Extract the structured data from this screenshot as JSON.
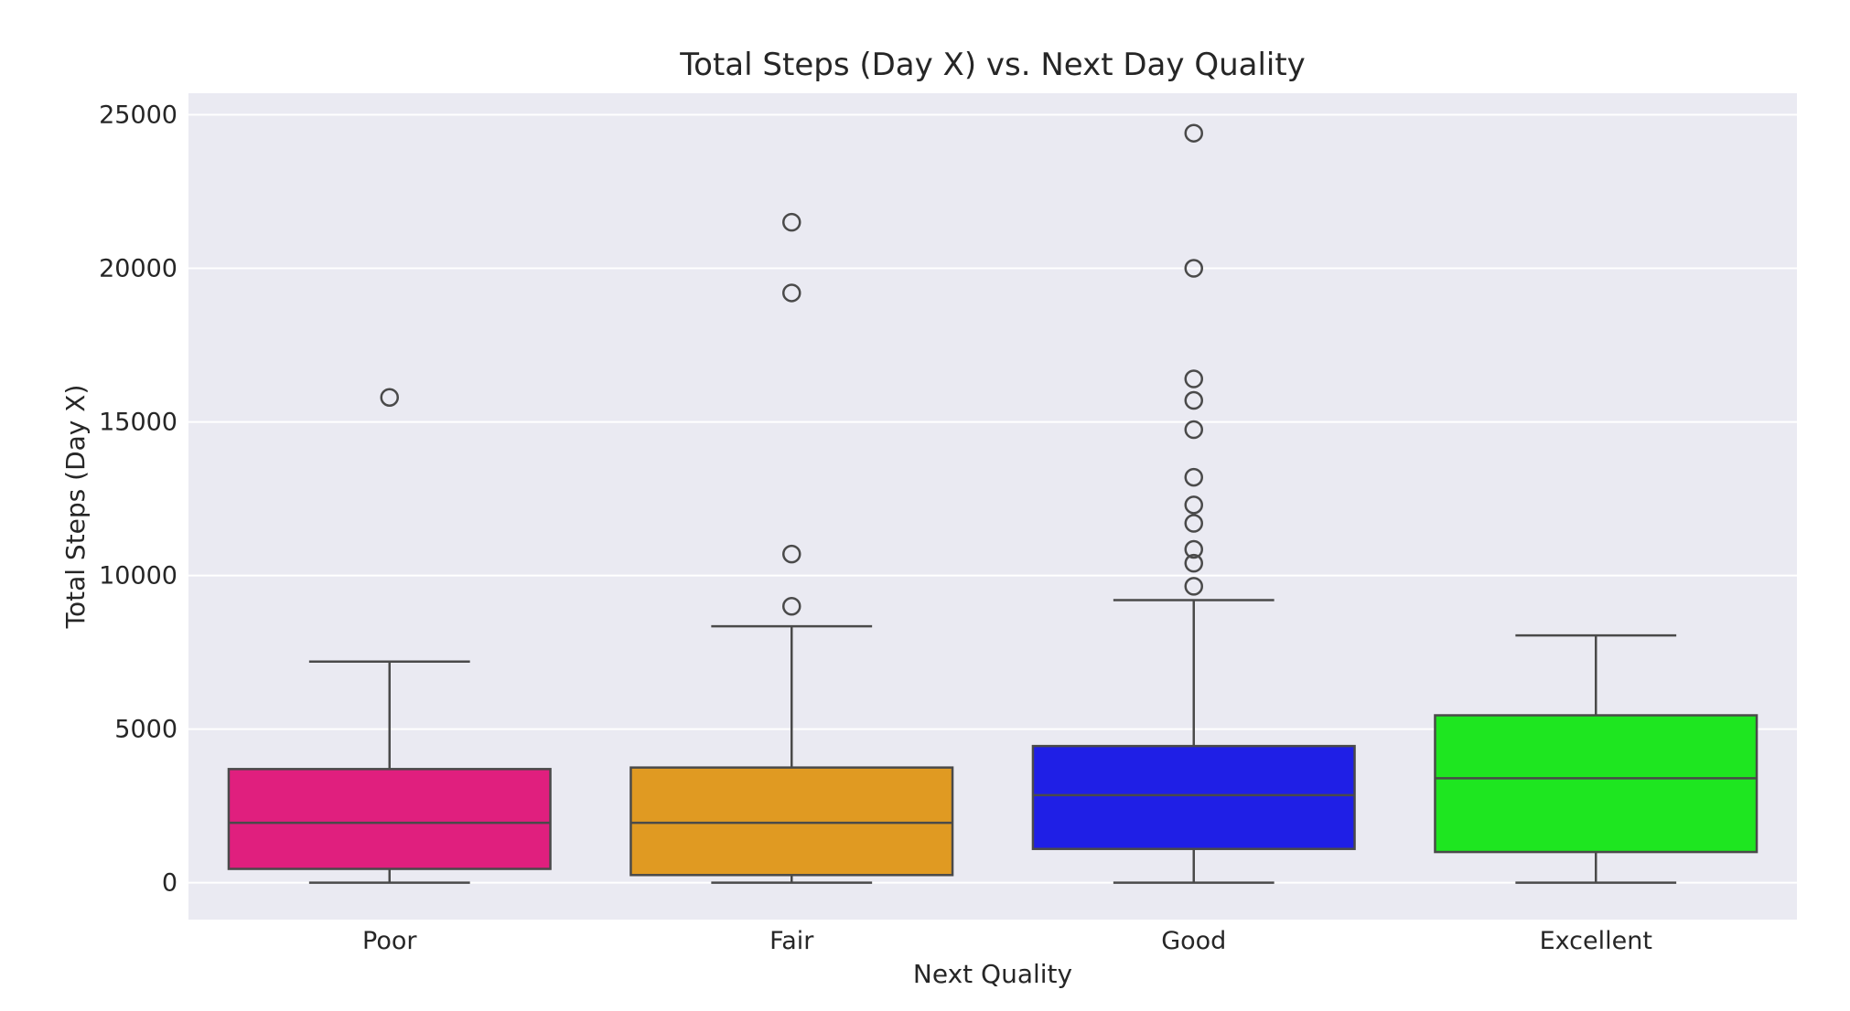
{
  "chart_data": {
    "type": "box",
    "title": "Total Steps (Day X) vs. Next Day Quality",
    "xlabel": "Next Quality",
    "ylabel": "Total Steps (Day X)",
    "ylim": [
      -1200,
      25700
    ],
    "yticks": [
      0,
      5000,
      10000,
      15000,
      20000,
      25000
    ],
    "grid": true,
    "categories": [
      "Poor",
      "Fair",
      "Good",
      "Excellent"
    ],
    "boxes": [
      {
        "category": "Poor",
        "color": "#e01f7e",
        "whisker_low": 0,
        "q1": 450,
        "median": 1950,
        "q3": 3700,
        "whisker_high": 7200,
        "outliers": [
          15800
        ]
      },
      {
        "category": "Fair",
        "color": "#e09a22",
        "whisker_low": 0,
        "q1": 250,
        "median": 1950,
        "q3": 3750,
        "whisker_high": 8350,
        "outliers": [
          9000,
          10700,
          19200,
          21500
        ]
      },
      {
        "category": "Good",
        "color": "#1f1fe6",
        "whisker_low": 0,
        "q1": 1100,
        "median": 2850,
        "q3": 4450,
        "whisker_high": 9200,
        "outliers": [
          9650,
          10400,
          10850,
          11700,
          12300,
          13200,
          14750,
          15700,
          16400,
          20000,
          24400
        ]
      },
      {
        "category": "Excellent",
        "color": "#1ee620",
        "whisker_low": 0,
        "q1": 1000,
        "median": 3400,
        "q3": 5450,
        "whisker_high": 8050,
        "outliers": []
      }
    ]
  }
}
